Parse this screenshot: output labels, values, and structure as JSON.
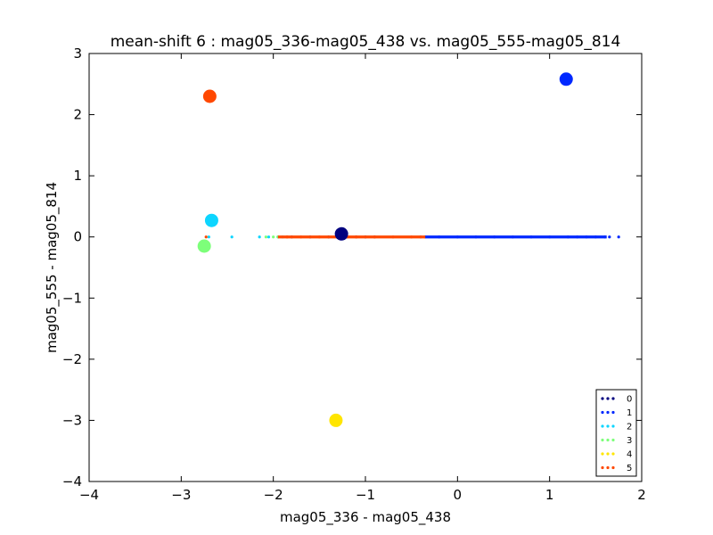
{
  "chart_data": {
    "type": "scatter",
    "title": "mean-shift 6 : mag05_336-mag05_438 vs. mag05_555-mag05_814",
    "xlabel": "mag05_336 - mag05_438",
    "ylabel": "mag05_555 - mag05_814",
    "xlim": [
      -4,
      2
    ],
    "ylim": [
      -4,
      3
    ],
    "xticks": [
      -4,
      -3,
      -2,
      -1,
      0,
      1,
      2
    ],
    "yticks": [
      -4,
      -3,
      -2,
      -1,
      0,
      1,
      2,
      3
    ],
    "xtick_labels": [
      "−4",
      "−3",
      "−2",
      "−1",
      "0",
      "1",
      "2"
    ],
    "ytick_labels": [
      "−4",
      "−3",
      "−2",
      "−1",
      "0",
      "1",
      "2",
      "3"
    ],
    "grid": false,
    "legend_position": "bottom-right",
    "series": [
      {
        "name": "0",
        "color": "#00007f",
        "x": [
          -1.8,
          -1.6,
          -1.4,
          -1.3,
          -1.2,
          -1.1,
          -1.0,
          -0.9
        ],
        "y": [
          0,
          0,
          0,
          0,
          0,
          0,
          0,
          0
        ]
      },
      {
        "name": "1",
        "color": "#0028ff",
        "x": [
          -0.4,
          -0.2,
          0.0,
          0.2,
          0.4,
          0.6,
          0.8,
          1.0,
          1.2,
          1.3,
          1.4,
          1.5,
          1.6,
          1.65,
          1.75
        ],
        "y": [
          0,
          0,
          0,
          0,
          0,
          0,
          0,
          0,
          0,
          0,
          0,
          0,
          0,
          0,
          0
        ]
      },
      {
        "name": "2",
        "color": "#0dd5ff",
        "x": [
          -2.7,
          -2.45,
          -2.15,
          -2.05,
          -1.95,
          -1.9
        ],
        "y": [
          0,
          0,
          0,
          0,
          0,
          0
        ]
      },
      {
        "name": "3",
        "color": "#7dff7a",
        "x": [
          -2.08,
          -2.0,
          -1.95
        ],
        "y": [
          0,
          0,
          0
        ]
      },
      {
        "name": "4",
        "color": "#ffe500",
        "x": [
          -1.85
        ],
        "y": [
          0
        ]
      },
      {
        "name": "5",
        "color": "#ff4800",
        "x": [
          -2.73,
          -1.85,
          -1.7,
          -1.5,
          -1.3,
          -1.1,
          -0.9,
          -0.7,
          -0.5,
          -0.35
        ],
        "y": [
          0,
          0,
          0,
          0,
          0,
          0,
          0,
          0,
          0,
          0
        ]
      }
    ],
    "centers": [
      {
        "cluster": "0",
        "x": -1.26,
        "y": 0.05,
        "color": "#00007f"
      },
      {
        "cluster": "1",
        "x": 1.18,
        "y": 2.58,
        "color": "#0028ff"
      },
      {
        "cluster": "2",
        "x": -2.67,
        "y": 0.27,
        "color": "#0dd5ff"
      },
      {
        "cluster": "3",
        "x": -2.75,
        "y": -0.15,
        "color": "#7dff7a"
      },
      {
        "cluster": "4",
        "x": -1.32,
        "y": -3.0,
        "color": "#ffe500"
      },
      {
        "cluster": "5",
        "x": -2.69,
        "y": 2.3,
        "color": "#ff4800"
      }
    ]
  }
}
